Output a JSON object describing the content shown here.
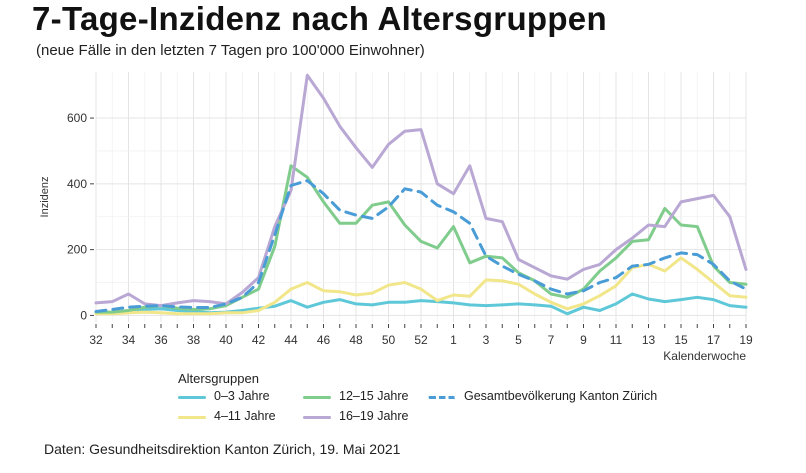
{
  "title": "7-Tage-Inzidenz nach Altersgruppen",
  "subtitle": "(neue Fälle in den letzten 7 Tagen pro 100'000 Einwohner)",
  "source": "Daten: Gesundheitsdirektion Kanton Zürich, 19. Mai 2021",
  "legend_title": "Altersgruppen",
  "chart_data": {
    "type": "line",
    "xlabel": "Kalenderwoche",
    "ylabel": "Inzidenz",
    "ylim": [
      -20,
      740
    ],
    "yticks": [
      0,
      200,
      400,
      600
    ],
    "x": [
      "32",
      "33",
      "34",
      "35",
      "36",
      "37",
      "38",
      "39",
      "40",
      "41",
      "42",
      "43",
      "44",
      "45",
      "46",
      "47",
      "48",
      "49",
      "50",
      "51",
      "52",
      "53",
      "1",
      "2",
      "3",
      "4",
      "5",
      "6",
      "7",
      "8",
      "9",
      "10",
      "11",
      "12",
      "13",
      "14",
      "15",
      "16",
      "17",
      "18",
      "19"
    ],
    "xticks": [
      "32",
      "34",
      "36",
      "38",
      "40",
      "42",
      "44",
      "46",
      "48",
      "50",
      "52",
      "1",
      "3",
      "5",
      "7",
      "9",
      "11",
      "13",
      "15",
      "17",
      "19"
    ],
    "grid": true,
    "series": [
      {
        "name": "0–3 Jahre",
        "color": "#5ec8d8",
        "dashed": false,
        "values": [
          8,
          8,
          12,
          18,
          20,
          15,
          12,
          8,
          10,
          15,
          22,
          28,
          45,
          25,
          40,
          48,
          35,
          32,
          40,
          40,
          45,
          42,
          38,
          32,
          30,
          32,
          35,
          32,
          28,
          5,
          25,
          15,
          35,
          65,
          50,
          42,
          48,
          55,
          48,
          30,
          25
        ]
      },
      {
        "name": "4–11 Jahre",
        "color": "#f2e68a",
        "dashed": false,
        "values": [
          5,
          5,
          8,
          10,
          8,
          5,
          5,
          5,
          8,
          8,
          15,
          40,
          80,
          100,
          75,
          72,
          62,
          68,
          92,
          100,
          80,
          45,
          62,
          58,
          108,
          105,
          95,
          65,
          40,
          20,
          35,
          60,
          90,
          145,
          155,
          135,
          175,
          140,
          100,
          60,
          55
        ]
      },
      {
        "name": "12–15 Jahre",
        "color": "#7fcc8c",
        "dashed": false,
        "values": [
          10,
          10,
          15,
          25,
          30,
          22,
          18,
          20,
          30,
          55,
          80,
          210,
          455,
          420,
          345,
          280,
          280,
          335,
          345,
          275,
          225,
          205,
          270,
          160,
          180,
          175,
          130,
          105,
          65,
          55,
          80,
          135,
          175,
          225,
          230,
          325,
          275,
          270,
          150,
          100,
          95
        ]
      },
      {
        "name": "16–19 Jahre",
        "color": "#b9a7d4",
        "dashed": false,
        "values": [
          38,
          42,
          65,
          35,
          30,
          38,
          45,
          42,
          35,
          70,
          115,
          270,
          380,
          730,
          660,
          575,
          510,
          450,
          520,
          560,
          565,
          400,
          370,
          455,
          295,
          285,
          170,
          145,
          120,
          110,
          140,
          155,
          200,
          235,
          275,
          270,
          345,
          355,
          365,
          300,
          140
        ]
      },
      {
        "name": "Gesamtbevölkerung Kanton Zürich",
        "color": "#4a9cd6",
        "dashed": true,
        "values": [
          12,
          18,
          25,
          28,
          30,
          26,
          24,
          24,
          35,
          55,
          100,
          245,
          395,
          410,
          370,
          320,
          305,
          295,
          330,
          385,
          375,
          335,
          315,
          280,
          180,
          150,
          125,
          105,
          80,
          65,
          75,
          100,
          115,
          150,
          155,
          175,
          190,
          185,
          155,
          105,
          80
        ]
      }
    ]
  }
}
